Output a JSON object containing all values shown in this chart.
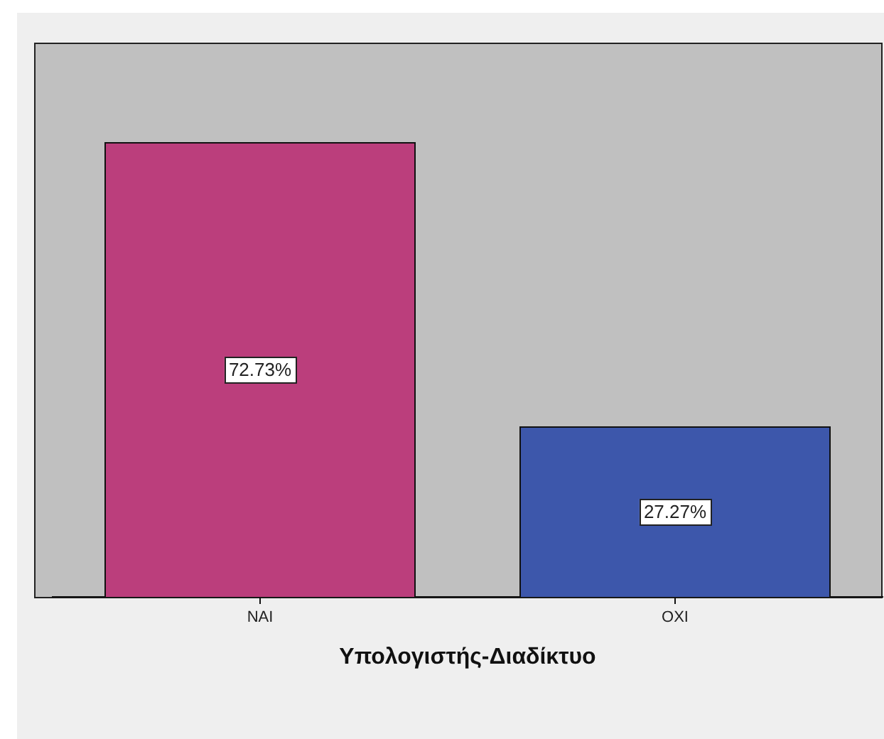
{
  "chart_data": {
    "type": "bar",
    "xlabel": "Υπολογιστής-Διαδίκτυο",
    "categories": [
      "ΝΑΙ",
      "ΟΧΙ"
    ],
    "values": [
      72.73,
      27.27
    ],
    "colors": [
      "#bb3e7c",
      "#3d57ab"
    ],
    "value_labels": [
      "72.73%",
      "27.27%"
    ],
    "tick_labels": "x"
  }
}
